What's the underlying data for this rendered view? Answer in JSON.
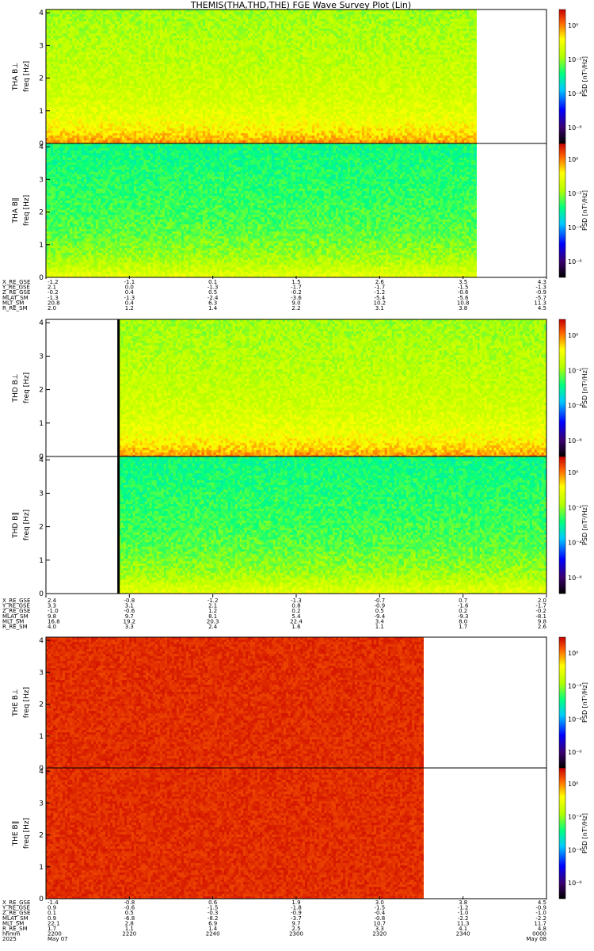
{
  "title": "THEMIS(THA,THD,THE) FGE Wave Survey Plot (Lin)",
  "colorbar_label": "PSD [nT²/Hz]",
  "colorbar_ticks": [
    "10⁰",
    "10⁻²",
    "10⁻⁴",
    "10⁻⁶"
  ],
  "freq_ticks": [
    "0",
    "1",
    "2",
    "3",
    "4"
  ],
  "chart_data": [
    {
      "type": "heatmap",
      "probe": "THA",
      "panels": [
        {
          "label": "THA B⊥",
          "ylabel": "freq [Hz]"
        },
        {
          "label": "THA B∥",
          "ylabel": "freq [Hz]"
        }
      ],
      "ylim": [
        0,
        4.1
      ],
      "colorbar": {
        "label": "PSD [nT²/Hz]",
        "scale": "log",
        "range": [
          1e-06,
          10.0
        ]
      },
      "data_start_fraction": 0.0,
      "data_end_fraction": 0.86,
      "ephemeris": {
        "labels": [
          "X_RE_GSE",
          "Y_RE_GSE",
          "Z_RE_GSE",
          "MLAT_SM",
          "MLT_SM",
          "R_RE_SM"
        ],
        "columns": [
          [
            "-1.2",
            "2.1",
            "-0.2",
            "-1.3",
            "20.8",
            "2.0"
          ],
          [
            "-1.1",
            "0.0",
            "0.4",
            "-1.3",
            "0.4",
            "1.2"
          ],
          [
            "0.1",
            "-1.3",
            "0.5",
            "-2.4",
            "6.3",
            "1.4"
          ],
          [
            "1.5",
            "-1.7",
            "-0.2",
            "-3.6",
            "9.0",
            "2.2"
          ],
          [
            "2.6",
            "-1.7",
            "-1.2",
            "-5.4",
            "10.2",
            "3.1"
          ],
          [
            "3.5",
            "-1.5",
            "-0.6",
            "-5.6",
            "10.8",
            "3.8"
          ],
          [
            "4.3",
            "-1.3",
            "-0.9",
            "-5.7",
            "11.3",
            "4.5"
          ]
        ]
      }
    },
    {
      "type": "heatmap",
      "probe": "THD",
      "panels": [
        {
          "label": "THD B⊥",
          "ylabel": "freq [Hz]"
        },
        {
          "label": "THD B∥",
          "ylabel": "freq [Hz]"
        }
      ],
      "ylim": [
        0,
        4.1
      ],
      "colorbar": {
        "label": "PSD [nT²/Hz]",
        "scale": "log",
        "range": [
          1e-06,
          10.0
        ]
      },
      "data_start_fraction": 0.145,
      "data_end_fraction": 1.0,
      "ephemeris": {
        "labels": [
          "X_RE_GSE",
          "Y_RE_GSE",
          "Z_RE_GSE",
          "MLAT_SM",
          "MLT_SM",
          "R_RE_SM"
        ],
        "columns": [
          [
            "2.4",
            "3.3",
            "-1.0",
            "9.8",
            "16.8",
            "4.0"
          ],
          [
            "-0.8",
            "3.1",
            "-0.6",
            "9.7",
            "19.2",
            "3.3"
          ],
          [
            "-1.2",
            "2.1",
            "1.2",
            "8.1",
            "20.3",
            "2.4"
          ],
          [
            "-1.3",
            "0.8",
            "0.2",
            "5.4",
            "22.4",
            "1.6"
          ],
          [
            "-0.7",
            "-0.9",
            "0.5",
            "-9.4",
            "3.4",
            "1.1"
          ],
          [
            "0.7",
            "-1.6",
            "0.2",
            "-9.3",
            "8.0",
            "1.7"
          ],
          [
            "2.0",
            "-1.7",
            "-0.2",
            "-8.1",
            "9.8",
            "2.6"
          ]
        ]
      }
    },
    {
      "type": "heatmap",
      "probe": "THE",
      "panels": [
        {
          "label": "THE B⊥",
          "ylabel": "freq [Hz]"
        },
        {
          "label": "THE B∥",
          "ylabel": "freq [Hz]"
        }
      ],
      "ylim": [
        0,
        4.1
      ],
      "colorbar": {
        "label": "PSD [nT²/Hz]",
        "scale": "log",
        "range": [
          1e-06,
          10.0
        ]
      },
      "data_start_fraction": 0.0,
      "data_end_fraction": 0.755,
      "ephemeris": {
        "labels": [
          "X_RE_GSE",
          "Y_RE_GSE",
          "Z_RE_GSE",
          "MLAT_SM",
          "MLT_SM",
          "R_RE_SM",
          "hhmm",
          "2025"
        ],
        "columns": [
          [
            "-1.4",
            "0.9",
            "0.1",
            "0.9",
            "22.1",
            "1.7",
            "2200",
            "May 07"
          ],
          [
            "-0.8",
            "-0.6",
            "0.5",
            "-6.8",
            "2.8",
            "1.1",
            "2220",
            ""
          ],
          [
            "0.6",
            "-1.5",
            "-0.3",
            "-8.2",
            "6.9",
            "1.4",
            "2240",
            ""
          ],
          [
            "1.9",
            "-1.8",
            "-0.9",
            "-3.7",
            "9.7",
            "2.5",
            "2300",
            ""
          ],
          [
            "3.0",
            "-1.5",
            "-0.4",
            "-0.8",
            "10.7",
            "3.3",
            "2320",
            ""
          ],
          [
            "3.8",
            "-1.2",
            "-1.0",
            "-2.2",
            "11.3",
            "4.1",
            "2340",
            ""
          ],
          [
            "4.5",
            "-0.9",
            "-1.0",
            "-2.2",
            "11.7",
            "4.8",
            "0000",
            "May 08"
          ]
        ]
      }
    }
  ]
}
